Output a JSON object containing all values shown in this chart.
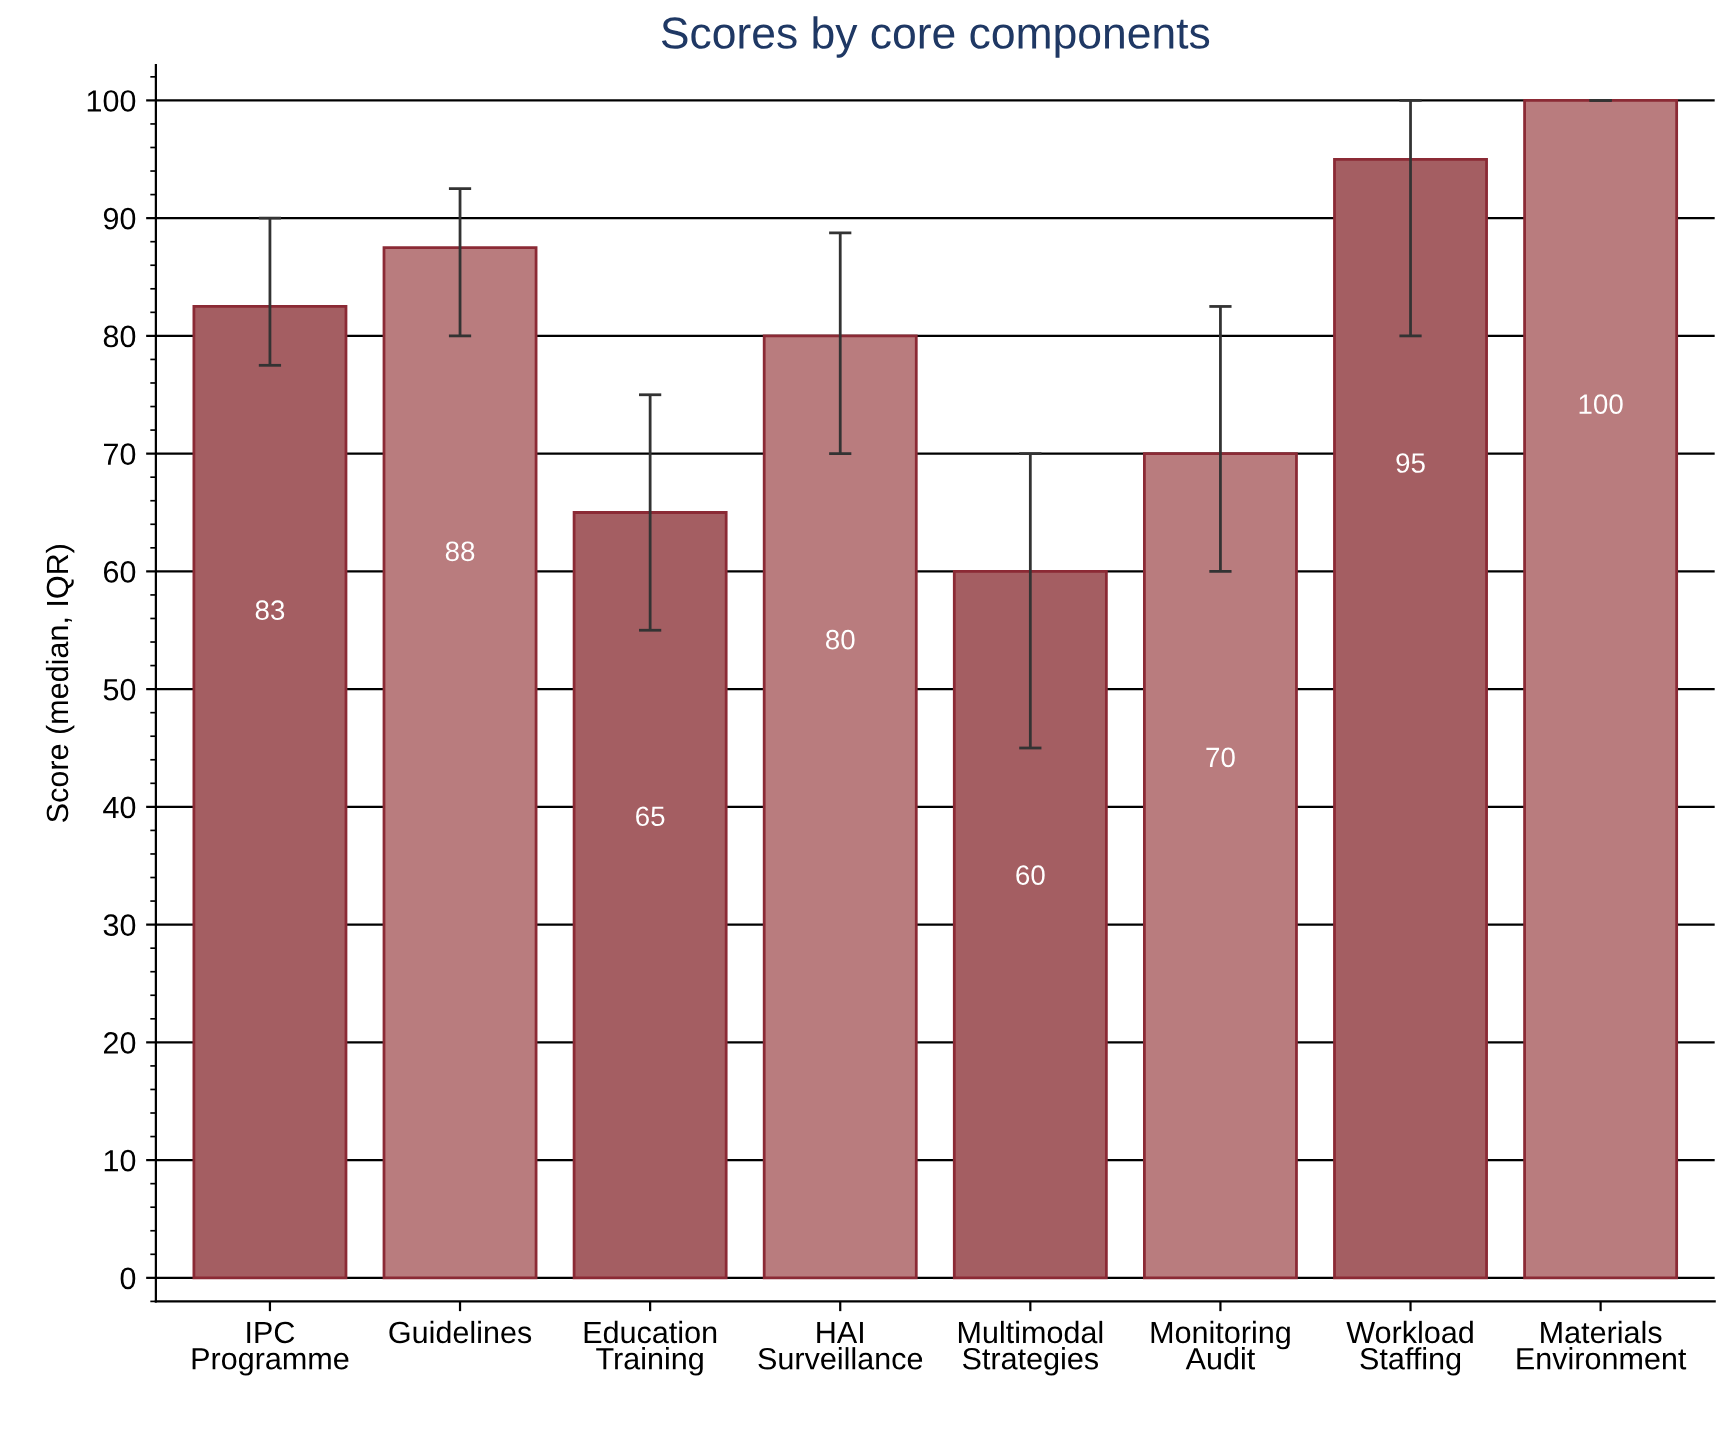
{
  "chart_data": {
    "type": "bar",
    "title": "Scores by core components",
    "ylabel": "Score (median, IQR)",
    "categories": [
      "IPC\nProgramme",
      "Guidelines",
      "Education\nTraining",
      "HAI\nSurveillance",
      "Multimodal\nStrategies",
      "Monitoring\nAudit",
      "Workload\nStaffing",
      "Materials\nEnvironment"
    ],
    "values": [
      82.5,
      87.5,
      65,
      80,
      60,
      70,
      95,
      100
    ],
    "colors": [
      "#a45e62",
      "#b97c7e",
      "#a45e62",
      "#b97c7e",
      "#a45e62",
      "#b97c7e",
      "#a45e62",
      "#b97c7e"
    ],
    "errors": [
      [
        77.5,
        90
      ],
      [
        80,
        92.5
      ],
      [
        55,
        75
      ],
      [
        70,
        88.75
      ],
      [
        45,
        70
      ],
      [
        60,
        82.5
      ],
      [
        80,
        100
      ],
      [
        100,
        100
      ]
    ],
    "value_labels": [
      "83",
      "88",
      "65",
      "80",
      "60",
      "70",
      "95",
      "100"
    ],
    "ylim": [
      -2,
      103
    ],
    "yticks": [
      0,
      10,
      20,
      30,
      40,
      50,
      60,
      70,
      80,
      90,
      100
    ],
    "grid": "y"
  }
}
